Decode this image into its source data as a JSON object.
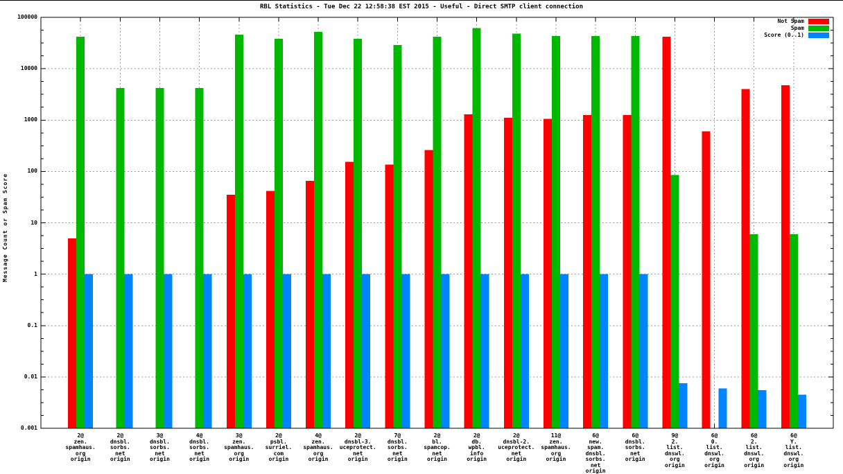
{
  "title": "RBL Statistics - Tue Dec 22 12:58:38 EST 2015 - Useful - Direct SMTP client connection",
  "chart_data": {
    "type": "bar",
    "scale": "log",
    "title": "RBL Statistics - Tue Dec 22 12:58:38 EST 2015 - Useful - Direct SMTP client connection",
    "xlabel": "",
    "ylabel": "Message Count or Spam Score",
    "ylim": [
      0.001,
      100000
    ],
    "y_tick_labels": [
      "100000",
      "10000",
      "1000",
      "100",
      "10",
      "1",
      "0.1",
      "0.01",
      "0.001"
    ],
    "grid": true,
    "legend_position": "top-right-inside",
    "legend": [
      {
        "name": "Not Spam",
        "color": "#ff0000"
      },
      {
        "name": "Spam",
        "color": "#00b800"
      },
      {
        "name": "Score (0..1)",
        "color": "#0084ff"
      }
    ],
    "categories": [
      [
        "2@",
        "zen.",
        "spamhaus.",
        "org",
        "origin"
      ],
      [
        "2@",
        "dnsbl.",
        "sorbs.",
        "net",
        "origin"
      ],
      [
        "3@",
        "dnsbl.",
        "sorbs.",
        "net",
        "origin"
      ],
      [
        "4@",
        "dnsbl.",
        "sorbs.",
        "net",
        "origin"
      ],
      [
        "3@",
        "zen.",
        "spamhaus.",
        "org",
        "origin"
      ],
      [
        "2@",
        "psbl.",
        "surriel.",
        "com",
        "origin"
      ],
      [
        "4@",
        "zen.",
        "spamhaus.",
        "org",
        "origin"
      ],
      [
        "2@",
        "dnsbl-3.",
        "uceprotect.",
        "net",
        "origin"
      ],
      [
        "7@",
        "dnsbl.",
        "sorbs.",
        "net",
        "origin"
      ],
      [
        "2@",
        "bl.",
        "spamcop.",
        "net",
        "origin"
      ],
      [
        "2@",
        "db.",
        "wpbl.",
        "info",
        "origin"
      ],
      [
        "2@",
        "dnsbl-2.",
        "uceprotect.",
        "net",
        "origin"
      ],
      [
        "11@",
        "zen.",
        "spamhaus.",
        "org",
        "origin"
      ],
      [
        "6@",
        "new.",
        "spam.",
        "dnsbl.",
        "sorbs.",
        "net",
        "origin"
      ],
      [
        "6@",
        "dnsbl.",
        "sorbs.",
        "net",
        "origin"
      ],
      [
        "9@",
        "2.",
        "list.",
        "dnswl.",
        "org",
        "origin"
      ],
      [
        "6@",
        "0.",
        "list.",
        "dnswl.",
        "org",
        "origin"
      ],
      [
        "6@",
        "2.",
        "list.",
        "dnswl.",
        "org",
        "origin"
      ],
      [
        "6@",
        "Y.",
        "list.",
        "dnswl.",
        "org",
        "origin"
      ]
    ],
    "series": [
      {
        "name": "Not Spam",
        "color": "#ff0000",
        "values": [
          5,
          0,
          0,
          0,
          35,
          42,
          65,
          155,
          135,
          260,
          1300,
          1100,
          1050,
          1250,
          1250,
          42000,
          600,
          4000,
          4800
        ]
      },
      {
        "name": "Spam",
        "color": "#00b800",
        "values": [
          42000,
          4200,
          4200,
          4200,
          46000,
          38000,
          52000,
          38000,
          29000,
          42000,
          62000,
          48000,
          43000,
          43000,
          43000,
          85,
          0,
          6,
          6
        ]
      },
      {
        "name": "Score (0..1)",
        "color": "#0084ff",
        "values": [
          1,
          1,
          1,
          1,
          1,
          1,
          1,
          1,
          1,
          1,
          1,
          1,
          1,
          1,
          1,
          0.0075,
          0.006,
          0.0055,
          0.0045
        ]
      }
    ]
  }
}
